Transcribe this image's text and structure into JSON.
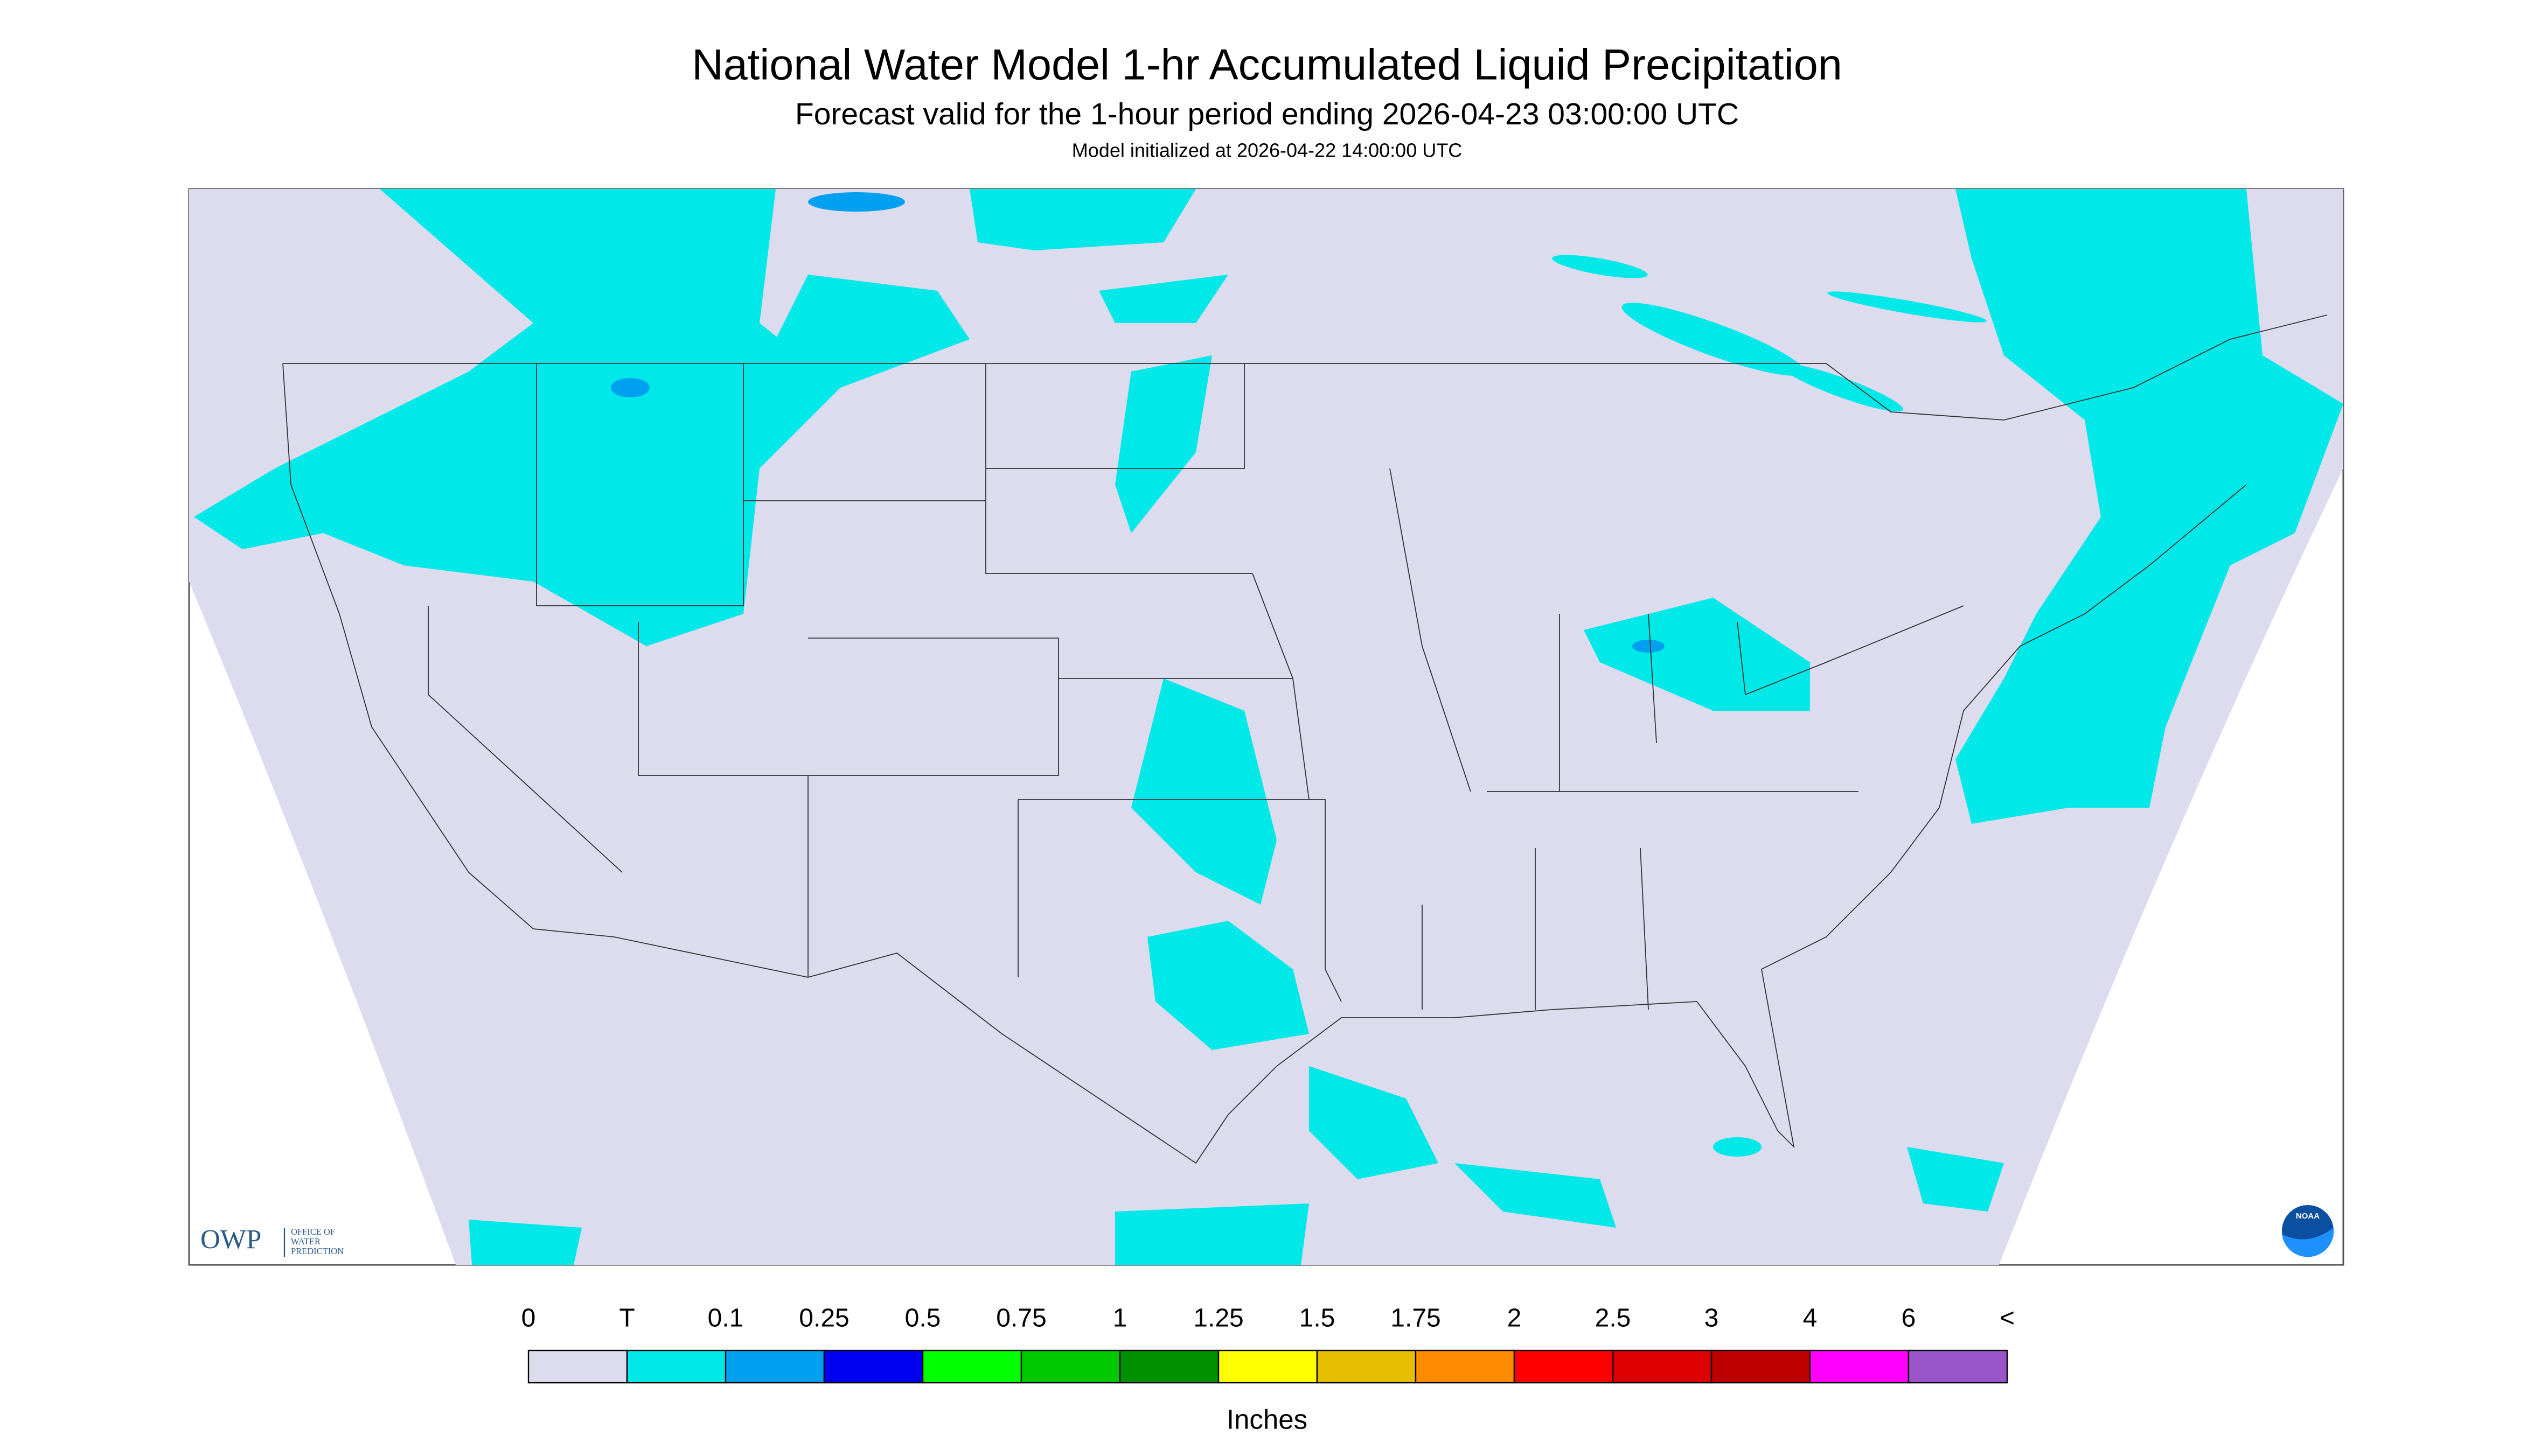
{
  "header": {
    "title": "National Water Model 1-hr Accumulated Liquid Precipitation",
    "subtitle": "Forecast valid for the 1-hour period ending 2026-04-23 03:00:00 UTC",
    "init": "Model initialized at 2026-04-22 14:00:00 UTC"
  },
  "logo": {
    "acronym": "OWP",
    "name_lines": [
      "OFFICE OF",
      "WATER",
      "PREDICTION"
    ],
    "agency": "NOAA"
  },
  "legend": {
    "labels": [
      "0",
      "T",
      "0.1",
      "0.25",
      "0.5",
      "0.75",
      "1",
      "1.25",
      "1.5",
      "1.75",
      "2",
      "2.5",
      "3",
      "4",
      "6",
      "<"
    ],
    "colors": [
      "#dcdcee",
      "#00e8e8",
      "#00a0f0",
      "#0000f0",
      "#00ff00",
      "#00c800",
      "#009000",
      "#ffff00",
      "#e6be00",
      "#ff8c00",
      "#ff0000",
      "#dc0000",
      "#be0000",
      "#ff00ff",
      "#9955c9"
    ],
    "unit": "Inches"
  }
}
